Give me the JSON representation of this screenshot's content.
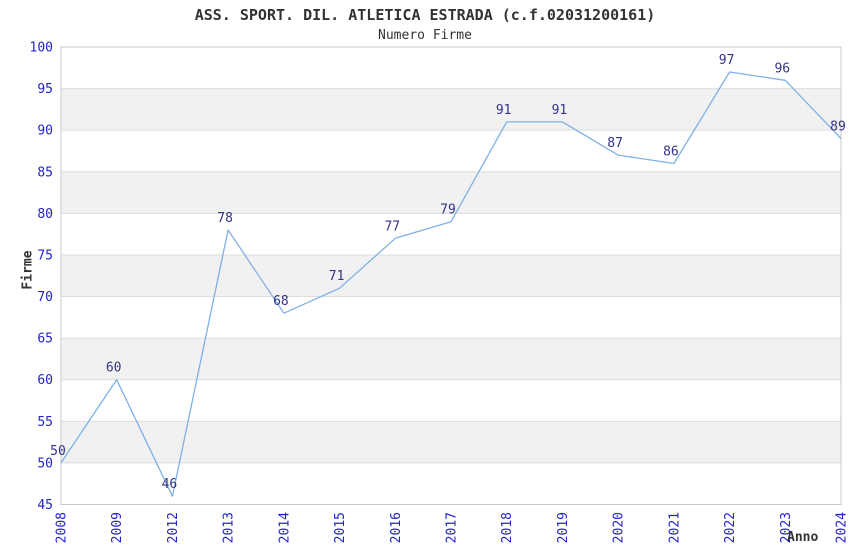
{
  "header": {
    "title": "ASS. SPORT. DIL. ATLETICA ESTRADA (c.f.02031200161)",
    "subtitle": "Numero Firme"
  },
  "chart_data": {
    "type": "line",
    "title": "ASS. SPORT. DIL. ATLETICA ESTRADA (c.f.02031200161)",
    "subtitle": "Numero Firme",
    "xlabel": "Anno",
    "ylabel": "Firme",
    "categories": [
      "2008",
      "2009",
      "2012",
      "2013",
      "2014",
      "2015",
      "2016",
      "2017",
      "2018",
      "2019",
      "2020",
      "2021",
      "2022",
      "2023",
      "2024"
    ],
    "values": [
      50,
      60,
      46,
      78,
      68,
      71,
      77,
      79,
      91,
      91,
      87,
      86,
      97,
      96,
      89
    ],
    "ylim": [
      45,
      100
    ],
    "ytick_step": 5,
    "yticks": [
      45,
      50,
      55,
      60,
      65,
      70,
      75,
      80,
      85,
      90,
      95,
      100
    ],
    "grid": "horizontal-bands",
    "legend_position": "none",
    "colors": {
      "line": "#7eb1e6",
      "value_label": "#333388",
      "tick_label": "#2323cc",
      "band_fill": "#f1f1f1",
      "grid_line": "#dddddd",
      "plot_border": "#c8c8c8",
      "text": "#333333",
      "background": "#ffffff"
    }
  }
}
